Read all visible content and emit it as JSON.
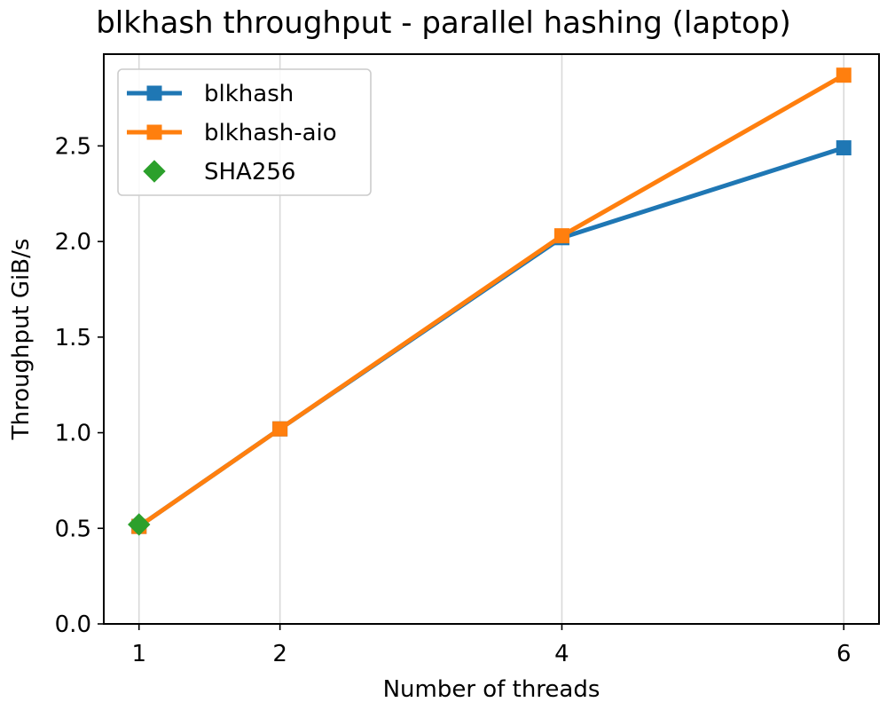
{
  "chart_data": {
    "type": "line",
    "title": "blkhash throughput - parallel hashing (laptop)",
    "xlabel": "Number of threads",
    "ylabel": "Throughput GiB/s",
    "xlim": [
      0.75,
      6.25
    ],
    "ylim": [
      0,
      2.98
    ],
    "xticks": [
      1,
      2,
      4,
      6
    ],
    "yticks": [
      0.0,
      0.5,
      1.0,
      1.5,
      2.0,
      2.5
    ],
    "grid": "x",
    "legend_position": "top-left",
    "series": [
      {
        "name": "blkhash",
        "marker": "square",
        "color": "#1f77b4",
        "x": [
          1,
          2,
          4,
          6
        ],
        "y": [
          0.51,
          1.02,
          2.02,
          2.49
        ]
      },
      {
        "name": "blkhash-aio",
        "marker": "square",
        "color": "#ff7f0e",
        "x": [
          1,
          2,
          4,
          6
        ],
        "y": [
          0.51,
          1.02,
          2.03,
          2.87
        ]
      },
      {
        "name": "SHA256",
        "marker": "diamond",
        "color": "#2ca02c",
        "x": [
          1
        ],
        "y": [
          0.52
        ]
      }
    ]
  }
}
